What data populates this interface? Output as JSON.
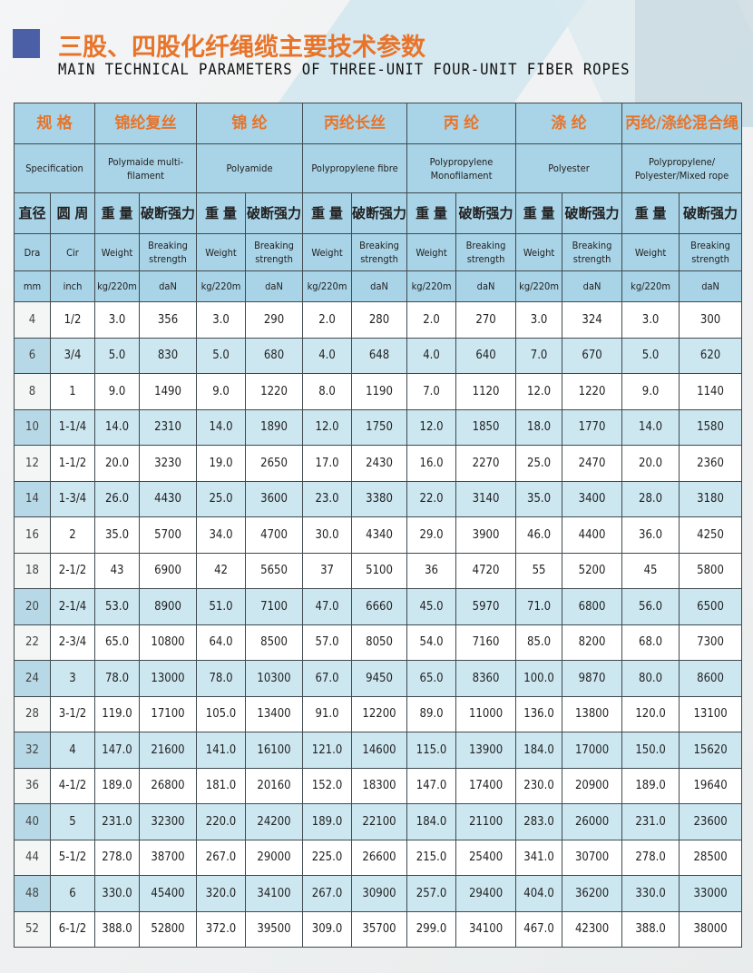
{
  "header": {
    "title_cn": "三股、四股化纤绳缆主要技术参数",
    "title_en": "MAIN TECHNICAL PARAMETERS OF THREE-UNIT FOUR-UNIT FIBER ROPES"
  },
  "table": {
    "spec_cn": "规 格",
    "spec_en": "Specification",
    "materials": [
      {
        "cn": "锦纶复丝",
        "en": "Polymaide multi-filament"
      },
      {
        "cn": "锦 纶",
        "en": "Polyamide"
      },
      {
        "cn": "丙纶长丝",
        "en": "Polypropylene fibre"
      },
      {
        "cn": "丙 纶",
        "en": "Polypropylene Monofilament"
      },
      {
        "cn": "涤 纶",
        "en": "Polyester"
      },
      {
        "cn": "丙纶/涤纶混合绳",
        "en": "Polypropylene/ Polyester/Mixed rope"
      }
    ],
    "dia_cn": "直径",
    "cir_cn": "圆 周",
    "weight_cn": "重 量",
    "break_cn": "破断强力",
    "dia_en": "Dra",
    "cir_en": "Cir",
    "weight_en": "Weight",
    "break_en": "Breaking strength",
    "dia_unit": "mm",
    "cir_unit": "inch",
    "weight_unit": "kg/220m",
    "break_unit": "daN",
    "rows": [
      [
        "4",
        "1/2",
        "3.0",
        "356",
        "3.0",
        "290",
        "2.0",
        "280",
        "2.0",
        "270",
        "3.0",
        "324",
        "3.0",
        "300"
      ],
      [
        "6",
        "3/4",
        "5.0",
        "830",
        "5.0",
        "680",
        "4.0",
        "648",
        "4.0",
        "640",
        "7.0",
        "670",
        "5.0",
        "620"
      ],
      [
        "8",
        "1",
        "9.0",
        "1490",
        "9.0",
        "1220",
        "8.0",
        "1190",
        "7.0",
        "1120",
        "12.0",
        "1220",
        "9.0",
        "1140"
      ],
      [
        "10",
        "1-1/4",
        "14.0",
        "2310",
        "14.0",
        "1890",
        "12.0",
        "1750",
        "12.0",
        "1850",
        "18.0",
        "1770",
        "14.0",
        "1580"
      ],
      [
        "12",
        "1-1/2",
        "20.0",
        "3230",
        "19.0",
        "2650",
        "17.0",
        "2430",
        "16.0",
        "2270",
        "25.0",
        "2470",
        "20.0",
        "2360"
      ],
      [
        "14",
        "1-3/4",
        "26.0",
        "4430",
        "25.0",
        "3600",
        "23.0",
        "3380",
        "22.0",
        "3140",
        "35.0",
        "3400",
        "28.0",
        "3180"
      ],
      [
        "16",
        "2",
        "35.0",
        "5700",
        "34.0",
        "4700",
        "30.0",
        "4340",
        "29.0",
        "3900",
        "46.0",
        "4400",
        "36.0",
        "4250"
      ],
      [
        "18",
        "2-1/2",
        "43",
        "6900",
        "42",
        "5650",
        "37",
        "5100",
        "36",
        "4720",
        "55",
        "5200",
        "45",
        "5800"
      ],
      [
        "20",
        "2-1/4",
        "53.0",
        "8900",
        "51.0",
        "7100",
        "47.0",
        "6660",
        "45.0",
        "5970",
        "71.0",
        "6800",
        "56.0",
        "6500"
      ],
      [
        "22",
        "2-3/4",
        "65.0",
        "10800",
        "64.0",
        "8500",
        "57.0",
        "8050",
        "54.0",
        "7160",
        "85.0",
        "8200",
        "68.0",
        "7300"
      ],
      [
        "24",
        "3",
        "78.0",
        "13000",
        "78.0",
        "10300",
        "67.0",
        "9450",
        "65.0",
        "8360",
        "100.0",
        "9870",
        "80.0",
        "8600"
      ],
      [
        "28",
        "3-1/2",
        "119.0",
        "17100",
        "105.0",
        "13400",
        "91.0",
        "12200",
        "89.0",
        "11000",
        "136.0",
        "13800",
        "120.0",
        "13100"
      ],
      [
        "32",
        "4",
        "147.0",
        "21600",
        "141.0",
        "16100",
        "121.0",
        "14600",
        "115.0",
        "13900",
        "184.0",
        "17000",
        "150.0",
        "15620"
      ],
      [
        "36",
        "4-1/2",
        "189.0",
        "26800",
        "181.0",
        "20160",
        "152.0",
        "18300",
        "147.0",
        "17400",
        "230.0",
        "20900",
        "189.0",
        "19640"
      ],
      [
        "40",
        "5",
        "231.0",
        "32300",
        "220.0",
        "24200",
        "189.0",
        "22100",
        "184.0",
        "21100",
        "283.0",
        "26000",
        "231.0",
        "23600"
      ],
      [
        "44",
        "5-1/2",
        "278.0",
        "38700",
        "267.0",
        "29000",
        "225.0",
        "26600",
        "215.0",
        "25400",
        "341.0",
        "30700",
        "278.0",
        "28500"
      ],
      [
        "48",
        "6",
        "330.0",
        "45400",
        "320.0",
        "34100",
        "267.0",
        "30900",
        "257.0",
        "29400",
        "404.0",
        "36200",
        "330.0",
        "33000"
      ],
      [
        "52",
        "6-1/2",
        "388.0",
        "52800",
        "372.0",
        "39500",
        "309.0",
        "35700",
        "299.0",
        "34100",
        "467.0",
        "42300",
        "388.0",
        "38000"
      ]
    ],
    "shaded_rows": [
      1,
      3,
      5,
      8,
      10,
      12,
      14,
      16
    ],
    "colors": {
      "header_bg": "#a9d3e6",
      "shaded_bg": "#cde7f1",
      "title_orange": "#e8742a",
      "marker_blue": "#4a5fa6"
    }
  }
}
